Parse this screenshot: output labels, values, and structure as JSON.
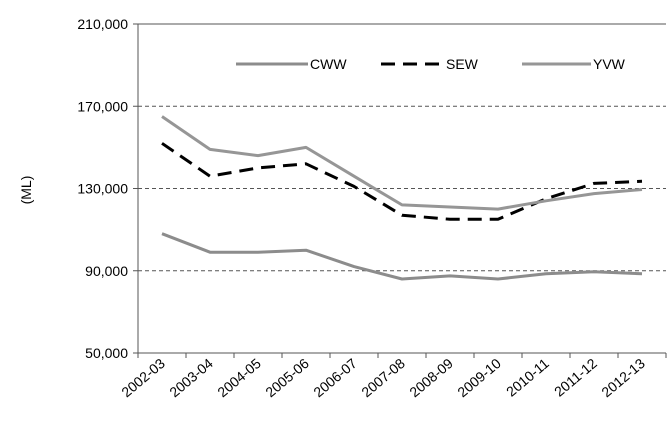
{
  "chart_data": {
    "type": "line",
    "title": "",
    "xlabel": "",
    "ylabel": "(ML)",
    "ylim": [
      50000,
      210000
    ],
    "yticks": [
      "50,000",
      "90,000",
      "130,000",
      "170,000",
      "210,000"
    ],
    "ytick_values": [
      50000,
      90000,
      130000,
      170000,
      210000
    ],
    "grid": "dashed horizontal at 90,000, 130,000, 170,000",
    "legend": "top, inside plot",
    "categories": [
      "2002-03",
      "2003-04",
      "2004-05",
      "2005-06",
      "2006-07",
      "2007-08",
      "2008-09",
      "2009-10",
      "2010-11",
      "2011-12",
      "2012-13"
    ],
    "series": [
      {
        "name": "CWW",
        "color": "#8c8c8c",
        "dash": "solid",
        "values": [
          108000,
          99000,
          99000,
          100000,
          92000,
          86000,
          87500,
          86000,
          88500,
          89500,
          88500
        ]
      },
      {
        "name": "SEW",
        "color": "#000000",
        "dash": "dashed",
        "values": [
          152000,
          136000,
          140000,
          142000,
          131000,
          117000,
          115000,
          115000,
          125000,
          132500,
          133500
        ]
      },
      {
        "name": "YVW",
        "color": "#969696",
        "dash": "solid",
        "values": [
          165000,
          149000,
          146000,
          150000,
          136000,
          122000,
          121000,
          120000,
          124000,
          127500,
          129500
        ]
      }
    ]
  }
}
